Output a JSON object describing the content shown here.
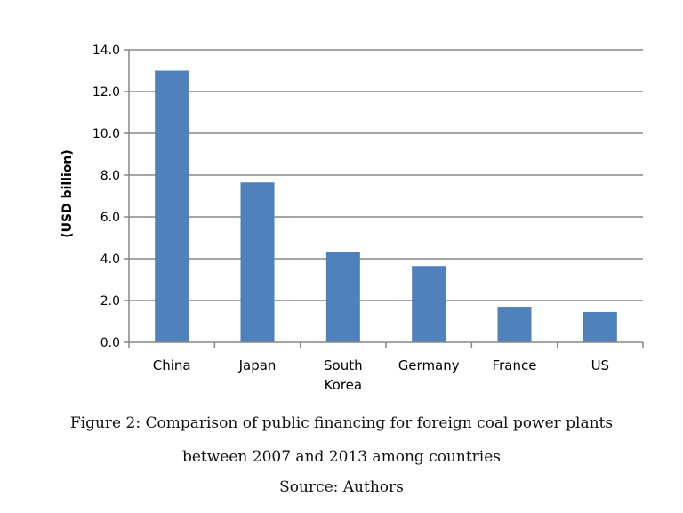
{
  "chart_data": {
    "type": "bar",
    "categories": [
      "China",
      "Japan",
      "South Korea",
      "Germany",
      "France",
      "US"
    ],
    "category_lines": [
      [
        "China"
      ],
      [
        "Japan"
      ],
      [
        "South",
        "Korea"
      ],
      [
        "Germany"
      ],
      [
        "France"
      ],
      [
        "US"
      ]
    ],
    "values": [
      13.0,
      7.65,
      4.3,
      3.65,
      1.7,
      1.45
    ],
    "ylabel": "(USD billion)",
    "xlabel": "",
    "ylim": [
      0,
      14
    ],
    "yticks": [
      "0.0",
      "2.0",
      "4.0",
      "6.0",
      "8.0",
      "10.0",
      "12.0",
      "14.0"
    ],
    "grid": true,
    "bar_color": "#4F81BD"
  },
  "caption": {
    "line1": "Figure 2: Comparison of public financing for foreign coal power plants",
    "line2": "between 2007 and 2013 among countries",
    "source": "Source: Authors"
  }
}
